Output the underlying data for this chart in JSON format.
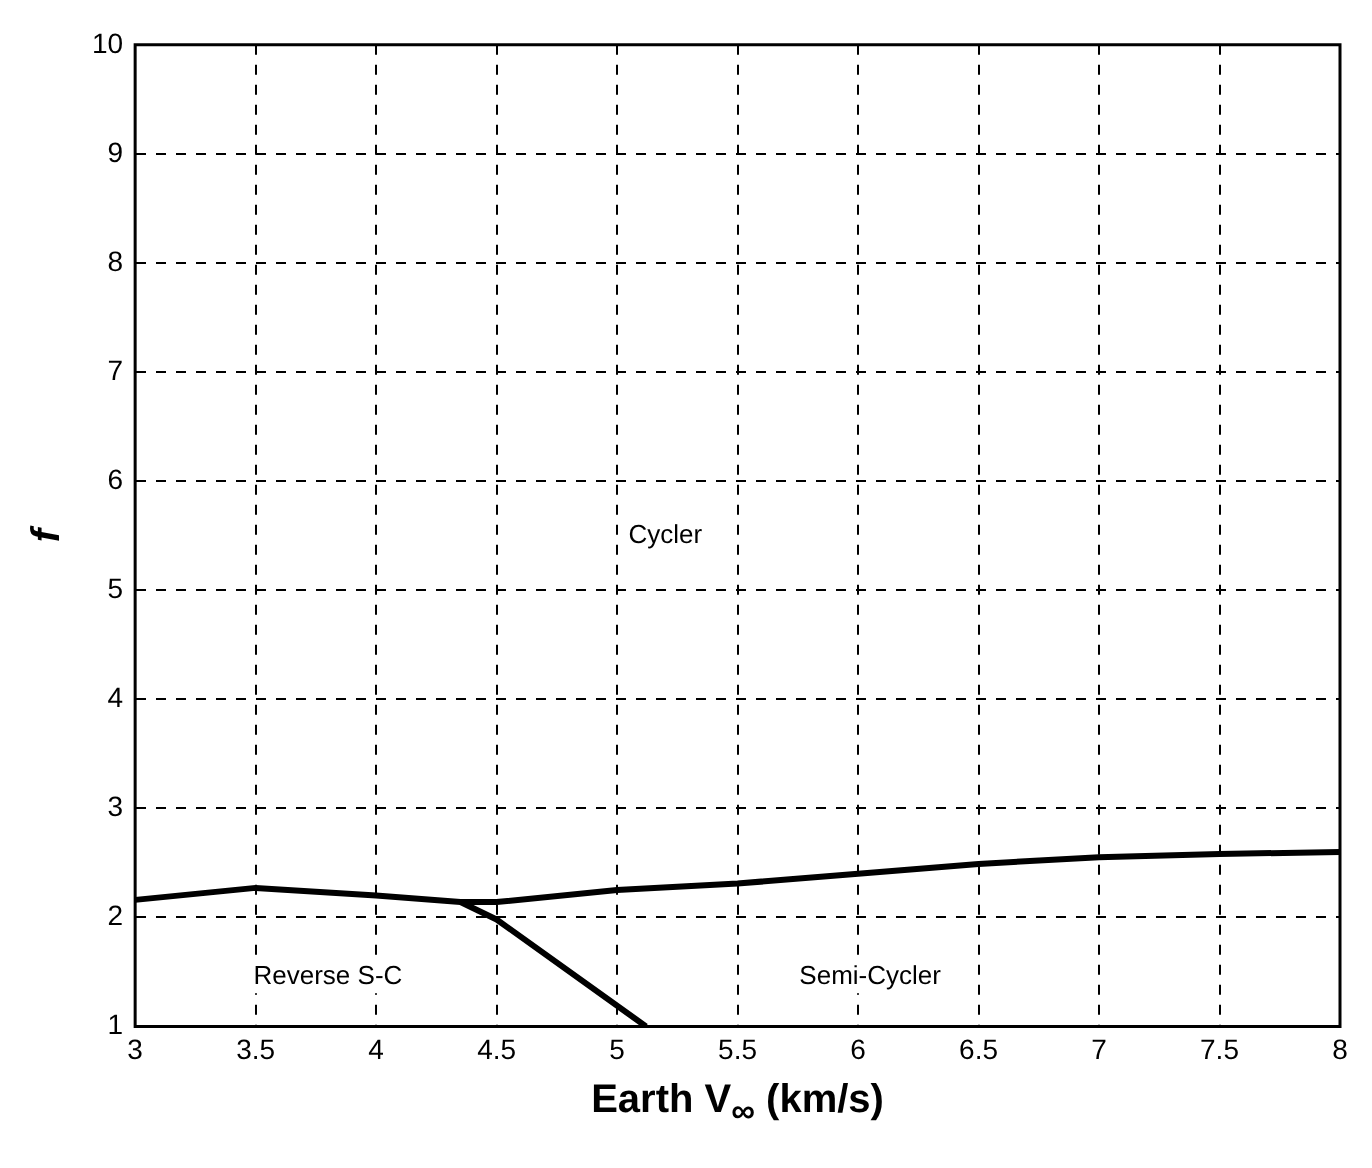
{
  "chart_data": {
    "type": "line",
    "xlabel": "Earth V$_{∞}$ (km/s)",
    "ylabel": "f",
    "xlim": [
      3,
      8
    ],
    "ylim": [
      1,
      10
    ],
    "xticks": [
      3,
      3.5,
      4,
      4.5,
      5,
      5.5,
      6,
      6.5,
      7,
      7.5,
      8
    ],
    "yticks": [
      1,
      2,
      3,
      4,
      5,
      6,
      7,
      8,
      9,
      10
    ],
    "grid": true,
    "marker": "none",
    "line_style": "solid",
    "series": [
      {
        "color": "#000000",
        "x": [
          3,
          3.5,
          4,
          4.35,
          4.5,
          5,
          5.5,
          6,
          6.5,
          7,
          7.5,
          8
        ],
        "values": [
          2.16,
          2.27,
          2.2,
          2.14,
          2.14,
          2.25,
          2.31,
          2.4,
          2.49,
          2.55,
          2.58,
          2.6
        ]
      },
      {
        "color": "#000000",
        "x": [
          4.35,
          4.5,
          5.12
        ],
        "values": [
          2.14,
          1.98,
          1
        ]
      }
    ],
    "annotations": [
      "Cycler",
      "Reverse S-C",
      "Semi-Cycler"
    ]
  }
}
